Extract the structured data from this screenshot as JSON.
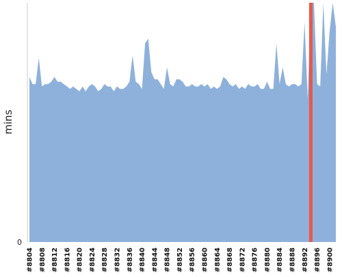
{
  "chart_data": {
    "type": "area",
    "title": "",
    "xlabel": "",
    "ylabel": "mins",
    "y_tick_labels": [
      "0"
    ],
    "ylim": [
      0,
      100
    ],
    "grid": false,
    "legend": "none",
    "colors": {
      "area": "#8eb1db",
      "highlight": "#e8584a",
      "axis": "#cccccc"
    },
    "x_tick_labels": [
      "#8804",
      "#8808",
      "#8812",
      "#8816",
      "#8820",
      "#8824",
      "#8828",
      "#8832",
      "#8836",
      "#8840",
      "#8844",
      "#8848",
      "#8852",
      "#8856",
      "#8860",
      "#8864",
      "#8868",
      "#8872",
      "#8876",
      "#8880",
      "#8884",
      "#8888",
      "#8892",
      "#8896",
      "#8900"
    ],
    "highlight_build": 8894,
    "highlight_value": 100,
    "x": [
      8804,
      8805,
      8806,
      8807,
      8808,
      8809,
      8810,
      8811,
      8812,
      8813,
      8814,
      8815,
      8816,
      8817,
      8818,
      8819,
      8820,
      8821,
      8822,
      8823,
      8824,
      8825,
      8826,
      8827,
      8828,
      8829,
      8830,
      8831,
      8832,
      8833,
      8834,
      8835,
      8836,
      8837,
      8838,
      8839,
      8840,
      8841,
      8842,
      8843,
      8844,
      8845,
      8846,
      8847,
      8848,
      8849,
      8850,
      8851,
      8852,
      8853,
      8854,
      8855,
      8856,
      8857,
      8858,
      8859,
      8860,
      8861,
      8862,
      8863,
      8864,
      8865,
      8866,
      8867,
      8868,
      8869,
      8870,
      8871,
      8872,
      8873,
      8874,
      8875,
      8876,
      8877,
      8878,
      8879,
      8880,
      8881,
      8882,
      8883,
      8884,
      8885,
      8886,
      8887,
      8888,
      8889,
      8890,
      8891,
      8892,
      8893,
      8894,
      8895,
      8896,
      8897,
      8898,
      8899,
      8900,
      8901,
      8902
    ],
    "values": [
      69,
      66,
      66,
      77,
      65,
      66,
      66,
      67,
      69,
      67,
      67,
      66,
      65,
      64,
      65,
      64,
      63,
      65,
      63,
      65,
      66,
      65,
      63,
      64,
      66,
      65,
      65,
      63,
      65,
      64,
      64,
      65,
      67,
      78,
      67,
      66,
      64,
      83,
      85,
      71,
      68,
      68,
      66,
      64,
      73,
      66,
      65,
      68,
      68,
      67,
      65,
      65,
      66,
      65,
      65,
      66,
      65,
      66,
      64,
      65,
      64,
      65,
      69,
      68,
      66,
      65,
      66,
      64,
      65,
      64,
      66,
      65,
      65,
      66,
      64,
      64,
      67,
      64,
      64,
      83,
      66,
      73,
      66,
      65,
      66,
      66,
      65,
      66,
      92,
      60,
      100,
      100,
      66,
      65,
      100,
      70,
      88,
      100,
      90
    ]
  }
}
